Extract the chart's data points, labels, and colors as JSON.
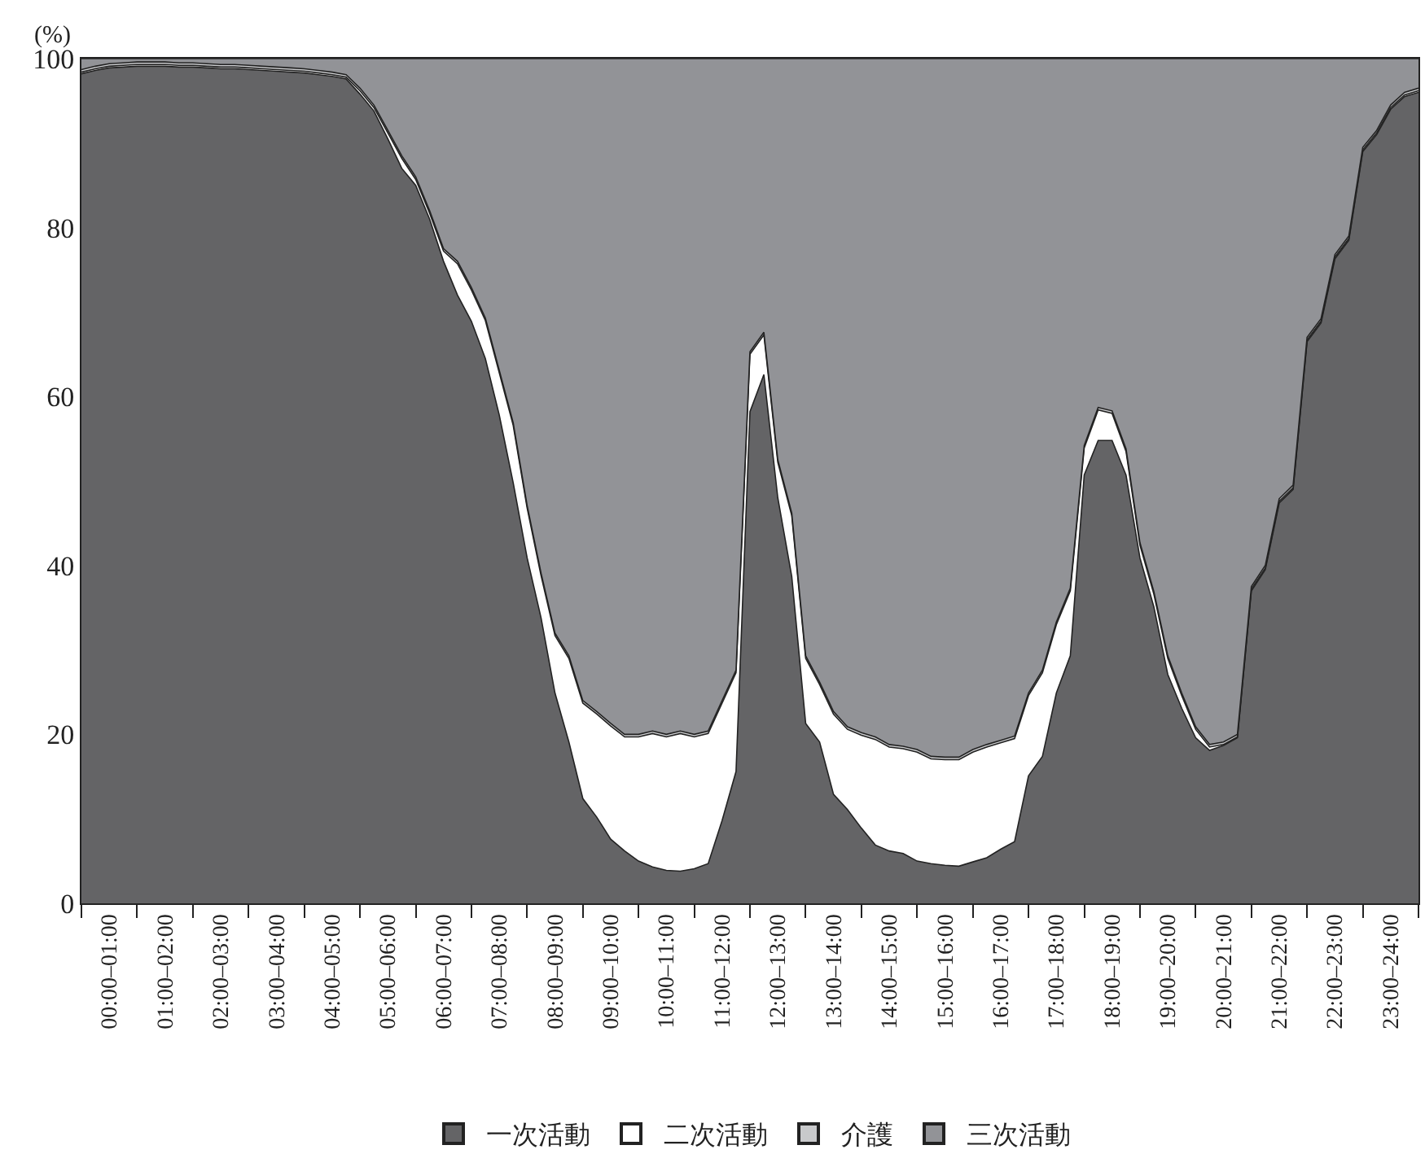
{
  "chart_data": {
    "type": "area",
    "stacked": true,
    "ylabel": "(%)",
    "categories": [
      null,
      null,
      "00:00–01:00",
      null,
      null,
      null,
      "01:00–02:00",
      null,
      null,
      null,
      "02:00–03:00",
      null,
      null,
      null,
      "03:00–04:00",
      null,
      null,
      null,
      "04:00–05:00",
      null,
      null,
      null,
      "05:00–06:00",
      null,
      null,
      null,
      "06:00–07:00",
      null,
      null,
      null,
      "07:00–08:00",
      null,
      null,
      null,
      "08:00–09:00",
      null,
      null,
      null,
      "09:00–10:00",
      null,
      null,
      null,
      "10:00–11:00",
      null,
      null,
      null,
      "11:00–12:00",
      null,
      null,
      null,
      "12:00–13:00",
      null,
      null,
      null,
      "13:00–14:00",
      null,
      null,
      null,
      "14:00–15:00",
      null,
      null,
      null,
      "15:00–16:00",
      null,
      null,
      null,
      "16:00–17:00",
      null,
      null,
      null,
      "17:00–18:00",
      null,
      null,
      null,
      "18:00–19:00",
      null,
      null,
      null,
      "19:00–20:00",
      null,
      null,
      null,
      "20:00–21:00",
      null,
      null,
      null,
      "21:00–22:00",
      null,
      null,
      null,
      "22:00–23:00",
      null,
      null,
      null,
      "23:00–24:00",
      null,
      null
    ],
    "ylim": [
      0,
      100
    ],
    "yticks": [
      0,
      20,
      40,
      60,
      80,
      100
    ],
    "legend": "bottom",
    "series": [
      {
        "name": "一次活動",
        "color": "#646466",
        "values": [
          98.2,
          98.6,
          98.9,
          99.0,
          99.1,
          99.1,
          99.1,
          99.0,
          99.0,
          98.9,
          98.8,
          98.8,
          98.7,
          98.6,
          98.5,
          98.4,
          98.3,
          98.1,
          97.9,
          97.6,
          95.8,
          93.8,
          90.5,
          87,
          85,
          81,
          76,
          72,
          68.9,
          64.5,
          57.8,
          49.8,
          40.9,
          33.8,
          24.9,
          19.1,
          12.4,
          10.2,
          7.6,
          6.2,
          5,
          4.3,
          3.9,
          3.8,
          4.1,
          4.7,
          9.8,
          15.6,
          58.2,
          62.6,
          48,
          38.7,
          21.3,
          19.1,
          12.9,
          11.1,
          8.9,
          6.9,
          6.2,
          5.9,
          5,
          4.7,
          4.5,
          4.4,
          4.9,
          5.4,
          6.4,
          7.3,
          15.1,
          17.4,
          24.9,
          29.3,
          50.7,
          54.8,
          54.8,
          50.7,
          40.9,
          35.1,
          27.1,
          23.1,
          19.6,
          18.1,
          18.7,
          19.6,
          37,
          39.5,
          47.4,
          49,
          66.5,
          68.7,
          76.3,
          78.5,
          89,
          91,
          94,
          95.5,
          96
        ]
      },
      {
        "name": "二次活動",
        "color": "#ffffff",
        "values": [
          0.2,
          0.2,
          0.2,
          0.2,
          0.2,
          0.2,
          0.2,
          0.2,
          0.2,
          0.2,
          0.2,
          0.2,
          0.2,
          0.2,
          0.2,
          0.2,
          0.2,
          0.2,
          0.2,
          0.2,
          0.4,
          0.4,
          0.7,
          1.2,
          0.7,
          0.7,
          1.2,
          3.7,
          3.7,
          4.5,
          5,
          6.8,
          5.9,
          5,
          6.8,
          9.9,
          11.3,
          12.2,
          13.4,
          13.5,
          14.7,
          15.8,
          15.8,
          16.3,
          15.6,
          15.4,
          13.9,
          11.7,
          6.8,
          4.7,
          4.2,
          7.2,
          7.7,
          6.8,
          9.5,
          9.5,
          11,
          12.5,
          12.3,
          12.4,
          12.9,
          12.4,
          12.5,
          12.6,
          13,
          13.1,
          12.6,
          12.2,
          9.5,
          9.9,
          8.1,
          7.7,
          3.2,
          3.6,
          3.2,
          2.8,
          1.5,
          1.5,
          1.9,
          1.5,
          1,
          0.4,
          0.1,
          0.1,
          0.2,
          0.2,
          0.2,
          0.2,
          0.2,
          0.2,
          0.2,
          0.2,
          0.2,
          0.2,
          0.2,
          0.2,
          0.2
        ]
      },
      {
        "name": "介護",
        "color": "#c8c9cb",
        "values": [
          0.3,
          0.3,
          0.3,
          0.3,
          0.3,
          0.3,
          0.3,
          0.3,
          0.3,
          0.3,
          0.3,
          0.3,
          0.3,
          0.3,
          0.3,
          0.3,
          0.3,
          0.3,
          0.3,
          0.3,
          0.3,
          0.3,
          0.3,
          0.3,
          0.3,
          0.3,
          0.3,
          0.3,
          0.3,
          0.3,
          0.3,
          0.3,
          0.3,
          0.3,
          0.3,
          0.3,
          0.3,
          0.3,
          0.3,
          0.3,
          0.3,
          0.3,
          0.3,
          0.3,
          0.3,
          0.3,
          0.3,
          0.3,
          0.3,
          0.3,
          0.3,
          0.3,
          0.3,
          0.3,
          0.3,
          0.3,
          0.3,
          0.3,
          0.3,
          0.3,
          0.3,
          0.3,
          0.3,
          0.3,
          0.3,
          0.3,
          0.3,
          0.3,
          0.3,
          0.3,
          0.3,
          0.3,
          0.3,
          0.3,
          0.3,
          0.3,
          0.3,
          0.3,
          0.3,
          0.3,
          0.3,
          0.3,
          0.3,
          0.3,
          0.3,
          0.3,
          0.3,
          0.3,
          0.3,
          0.3,
          0.3,
          0.3,
          0.3,
          0.3,
          0.3,
          0.3,
          0.3
        ]
      },
      {
        "name": "三次活動",
        "color": "#929397",
        "values": [
          1.3,
          0.9,
          0.6,
          0.5,
          0.4,
          0.4,
          0.4,
          0.5,
          0.5,
          0.6,
          0.7,
          0.7,
          0.8,
          0.9,
          1.0,
          1.1,
          1.2,
          1.4,
          1.6,
          1.9,
          3.5,
          5.5,
          8.5,
          11.5,
          14,
          18,
          22.5,
          24,
          27.1,
          30.7,
          36.9,
          43.1,
          52.9,
          60.9,
          68,
          70.7,
          76,
          77.3,
          78.7,
          80,
          80,
          79.6,
          80,
          79.6,
          80,
          79.6,
          76,
          72.4,
          34.7,
          32.4,
          47.5,
          53.8,
          70.7,
          73.8,
          77.3,
          79.1,
          79.8,
          80.3,
          81.2,
          81.4,
          81.8,
          82.6,
          82.7,
          82.7,
          81.8,
          81.2,
          80.7,
          80.2,
          75.1,
          72.4,
          66.7,
          62.7,
          45.8,
          41.3,
          41.7,
          46.2,
          57.3,
          63.1,
          70.7,
          75.1,
          79.1,
          81.2,
          80.9,
          80,
          62.5,
          60,
          52.1,
          50.5,
          33,
          30.8,
          23.2,
          21,
          10.5,
          8.5,
          5.5,
          4,
          3.5
        ]
      }
    ]
  }
}
